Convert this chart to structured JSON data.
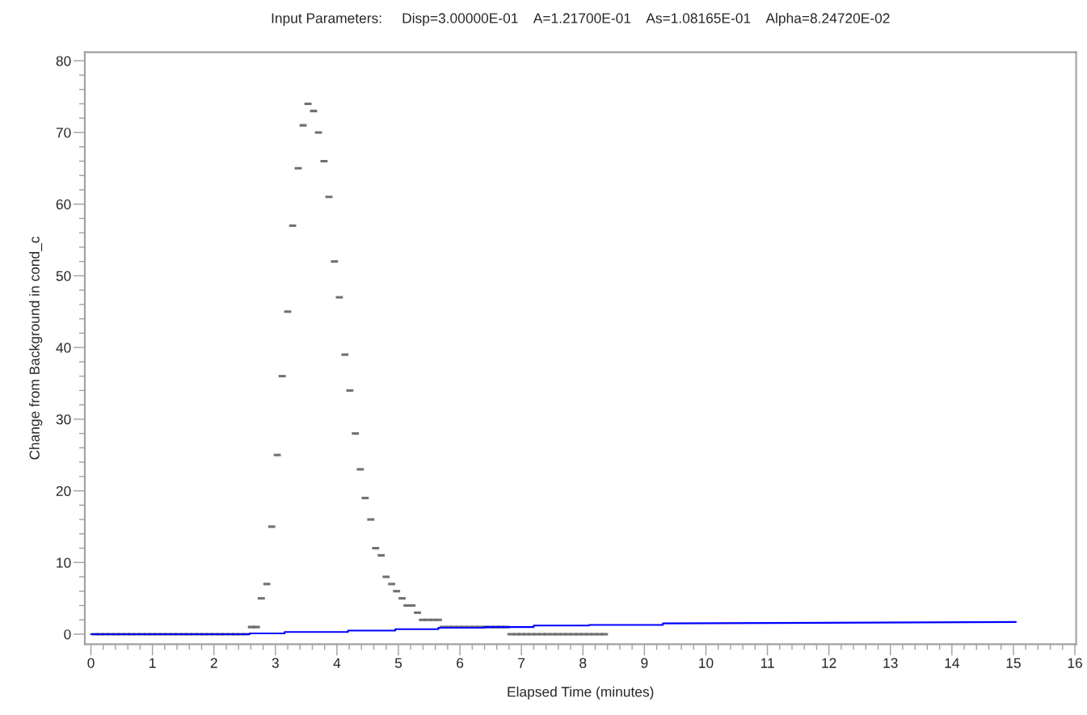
{
  "chart_data": {
    "type": "scatter",
    "title": "Input Parameters:     Disp=3.00000E-01    A=1.21700E-01    As=1.08165E-01    Alpha=8.24720E-02",
    "xlabel": "Elapsed Time (minutes)",
    "ylabel": "Change from Background in cond_c",
    "series": [
      {
        "color": "#707070",
        "x": [
          0.07,
          0.15,
          0.24,
          0.32,
          0.41,
          0.49,
          0.58,
          0.66,
          0.75,
          0.83,
          0.92,
          1.0,
          1.08,
          1.17,
          1.25,
          1.34,
          1.42,
          1.51,
          1.59,
          1.68,
          1.76,
          1.84,
          1.93,
          2.01,
          2.1,
          2.18,
          2.27,
          2.35,
          2.44,
          2.52,
          2.61,
          2.69,
          2.77,
          2.86,
          2.94,
          3.03,
          3.11,
          3.2,
          3.28,
          3.37,
          3.45,
          3.53,
          3.62,
          3.7,
          3.79,
          3.87,
          3.96,
          4.04,
          4.13,
          4.21,
          4.3,
          4.38,
          4.46,
          4.55,
          4.63,
          4.72,
          4.8,
          4.89,
          4.97,
          5.06,
          5.14,
          5.22,
          5.31,
          5.39,
          5.48,
          5.56,
          5.65,
          5.73,
          5.82,
          5.9,
          5.99,
          6.07,
          6.16,
          6.24,
          6.32,
          6.41,
          6.49,
          6.58,
          6.66,
          6.75,
          6.83,
          6.92,
          7.0,
          7.08,
          7.17,
          7.25,
          7.34,
          7.42,
          7.51,
          7.59,
          7.68,
          7.76,
          7.85,
          7.93,
          8.02,
          8.1,
          8.18,
          8.27,
          8.35
        ],
        "values": [
          0,
          0,
          0,
          0,
          0,
          0,
          0,
          0,
          0,
          0,
          0,
          0,
          0,
          0,
          0,
          0,
          0,
          0,
          0,
          0,
          0,
          0,
          0,
          0,
          0,
          0,
          0,
          0,
          0,
          0,
          1,
          1,
          5,
          7,
          15,
          25,
          36,
          45,
          57,
          65,
          71,
          74,
          73,
          70,
          66,
          61,
          52,
          47,
          39,
          34,
          28,
          23,
          19,
          16,
          12,
          11,
          8,
          7,
          6,
          5,
          4,
          4,
          3,
          2,
          2,
          2,
          2,
          1,
          1,
          1,
          1,
          1,
          1,
          1,
          1,
          1,
          1,
          1,
          1,
          1,
          0,
          0,
          0,
          0,
          0,
          0,
          0,
          0,
          0,
          0,
          0,
          0,
          0,
          0,
          0,
          0,
          0,
          0,
          0
        ]
      },
      {
        "type": "line",
        "color": "#0000ff",
        "line_style": "solid",
        "x": [
          0,
          2.58,
          2.58,
          3.15,
          3.15,
          4.18,
          4.18,
          4.95,
          4.95,
          5.65,
          5.65,
          6.4,
          6.4,
          7.2,
          7.2,
          8.1,
          8.1,
          9.3,
          9.3,
          15.04
        ],
        "values": [
          0,
          0,
          0.1,
          0.1,
          0.3,
          0.3,
          0.5,
          0.5,
          0.7,
          0.7,
          0.9,
          0.9,
          1,
          1,
          1.2,
          1.2,
          1.3,
          1.3,
          1.5,
          1.7
        ]
      }
    ],
    "xlim": [
      -0.1,
      16.02
    ],
    "ylim": [
      -1.4,
      81.2
    ],
    "xticks": [
      0,
      {
        "value": 0.2,
        "label": null
      },
      {
        "value": 0.4,
        "label": null
      },
      {
        "value": 0.6,
        "label": null
      },
      {
        "value": 0.8,
        "label": null
      },
      1,
      {
        "value": 1.2,
        "label": null
      },
      {
        "value": 1.4,
        "label": null
      },
      {
        "value": 1.6,
        "label": null
      },
      {
        "value": 1.8,
        "label": null
      },
      2,
      {
        "value": 2.2,
        "label": null
      },
      {
        "value": 2.4,
        "label": null
      },
      {
        "value": 2.6,
        "label": null
      },
      {
        "value": 2.8,
        "label": null
      },
      3,
      {
        "value": 3.2,
        "label": null
      },
      {
        "value": 3.4,
        "label": null
      },
      {
        "value": 3.6,
        "label": null
      },
      {
        "value": 3.8,
        "label": null
      },
      4,
      {
        "value": 4.2,
        "label": null
      },
      {
        "value": 4.4,
        "label": null
      },
      {
        "value": 4.6,
        "label": null
      },
      {
        "value": 4.8,
        "label": null
      },
      5,
      {
        "value": 5.2,
        "label": null
      },
      {
        "value": 5.4,
        "label": null
      },
      {
        "value": 5.6,
        "label": null
      },
      {
        "value": 5.8,
        "label": null
      },
      6,
      {
        "value": 6.2,
        "label": null
      },
      {
        "value": 6.4,
        "label": null
      },
      {
        "value": 6.6,
        "label": null
      },
      {
        "value": 6.8,
        "label": null
      },
      7,
      {
        "value": 7.2,
        "label": null
      },
      {
        "value": 7.4,
        "label": null
      },
      {
        "value": 7.6,
        "label": null
      },
      {
        "value": 7.8,
        "label": null
      },
      8,
      {
        "value": 8.2,
        "label": null
      },
      {
        "value": 8.4,
        "label": null
      },
      {
        "value": 8.6,
        "label": null
      },
      {
        "value": 8.8,
        "label": null
      },
      9,
      {
        "value": 9.2,
        "label": null
      },
      {
        "value": 9.4,
        "label": null
      },
      {
        "value": 9.6,
        "label": null
      },
      {
        "value": 9.8,
        "label": null
      },
      10,
      {
        "value": 10.2,
        "label": null
      },
      {
        "value": 10.4,
        "label": null
      },
      {
        "value": 10.6,
        "label": null
      },
      {
        "value": 10.8,
        "label": null
      },
      11,
      {
        "value": 11.2,
        "label": null
      },
      {
        "value": 11.4,
        "label": null
      },
      {
        "value": 11.6,
        "label": null
      },
      {
        "value": 11.8,
        "label": null
      },
      12,
      {
        "value": 12.2,
        "label": null
      },
      {
        "value": 12.4,
        "label": null
      },
      {
        "value": 12.6,
        "label": null
      },
      {
        "value": 12.8,
        "label": null
      },
      13,
      {
        "value": 13.2,
        "label": null
      },
      {
        "value": 13.4,
        "label": null
      },
      {
        "value": 13.6,
        "label": null
      },
      {
        "value": 13.8,
        "label": null
      },
      14,
      {
        "value": 14.2,
        "label": null
      },
      {
        "value": 14.4,
        "label": null
      },
      {
        "value": 14.6,
        "label": null
      },
      {
        "value": 14.8,
        "label": null
      },
      15,
      {
        "value": 15.2,
        "label": null
      },
      {
        "value": 15.4,
        "label": null
      },
      {
        "value": 15.6,
        "label": null
      },
      {
        "value": 15.8,
        "label": null
      },
      16
    ],
    "yticks": [
      0,
      {
        "value": 2,
        "label": null
      },
      {
        "value": 4,
        "label": null
      },
      {
        "value": 6,
        "label": null
      },
      {
        "value": 8,
        "label": null
      },
      10,
      {
        "value": 12,
        "label": null
      },
      {
        "value": 14,
        "label": null
      },
      {
        "value": 16,
        "label": null
      },
      {
        "value": 18,
        "label": null
      },
      20,
      {
        "value": 22,
        "label": null
      },
      {
        "value": 24,
        "label": null
      },
      {
        "value": 26,
        "label": null
      },
      {
        "value": 28,
        "label": null
      },
      30,
      {
        "value": 32,
        "label": null
      },
      {
        "value": 34,
        "label": null
      },
      {
        "value": 36,
        "label": null
      },
      {
        "value": 38,
        "label": null
      },
      40,
      {
        "value": 42,
        "label": null
      },
      {
        "value": 44,
        "label": null
      },
      {
        "value": 46,
        "label": null
      },
      {
        "value": 48,
        "label": null
      },
      50,
      {
        "value": 52,
        "label": null
      },
      {
        "value": 54,
        "label": null
      },
      {
        "value": 56,
        "label": null
      },
      {
        "value": 58,
        "label": null
      },
      60,
      {
        "value": 62,
        "label": null
      },
      {
        "value": 64,
        "label": null
      },
      {
        "value": 66,
        "label": null
      },
      {
        "value": 68,
        "label": null
      },
      70,
      {
        "value": 72,
        "label": null
      },
      {
        "value": 74,
        "label": null
      },
      {
        "value": 76,
        "label": null
      },
      {
        "value": 78,
        "label": null
      },
      80
    ],
    "grid": false,
    "legend": false
  }
}
